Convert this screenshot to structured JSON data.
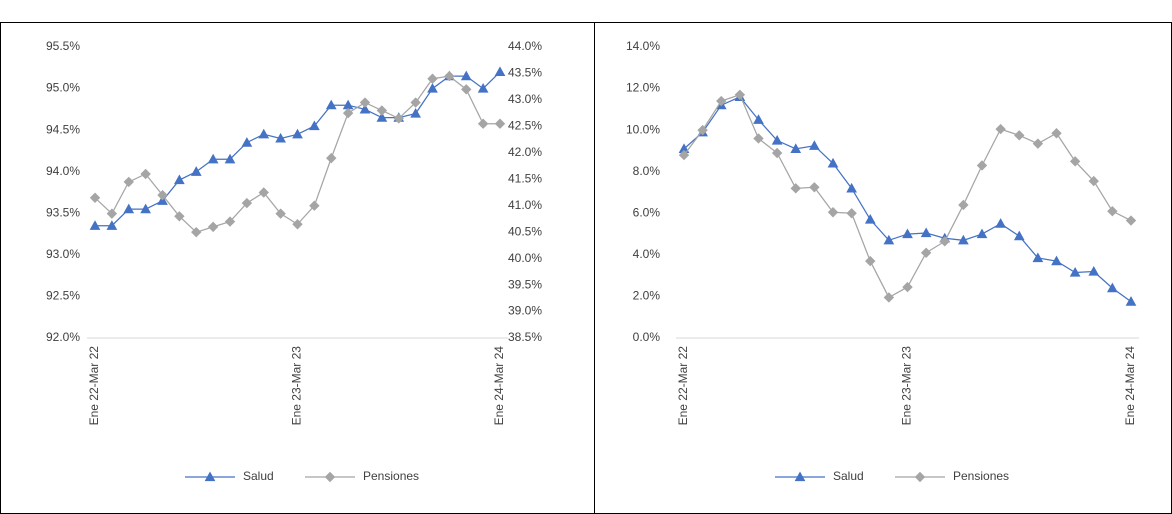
{
  "chart_data": [
    {
      "type": "line",
      "categories": [
        "Ene 22-Mar 22",
        null,
        null,
        null,
        null,
        null,
        null,
        null,
        null,
        null,
        null,
        null,
        "Ene 23-Mar 23",
        null,
        null,
        null,
        null,
        null,
        null,
        null,
        null,
        null,
        null,
        null,
        "Ene 24-Mar 24"
      ],
      "series": [
        {
          "name": "Salud",
          "color": "#4472c4",
          "marker": "triangle",
          "axis": "y",
          "values": [
            93.35,
            93.35,
            93.55,
            93.55,
            93.65,
            93.9,
            94.0,
            94.15,
            94.15,
            94.35,
            94.45,
            94.4,
            94.45,
            94.55,
            94.8,
            94.8,
            94.75,
            94.65,
            94.65,
            94.7,
            95.0,
            95.15,
            95.15,
            95.0,
            95.2
          ]
        },
        {
          "name": "Pensiones",
          "color": "#a5a5a5",
          "marker": "diamond",
          "axis": "y2",
          "values": [
            41.15,
            40.85,
            41.45,
            41.6,
            41.2,
            40.8,
            40.5,
            40.6,
            40.7,
            41.05,
            41.25,
            40.85,
            40.65,
            41.0,
            41.9,
            42.75,
            42.95,
            42.8,
            42.65,
            42.95,
            43.4,
            43.45,
            43.2,
            42.55,
            42.55
          ]
        }
      ],
      "ylim": [
        92,
        95.5
      ],
      "yticks": [
        {
          "value": 92,
          "label": "92.0%"
        },
        {
          "value": 92.5,
          "label": "92.5%"
        },
        {
          "value": 93,
          "label": "93.0%"
        },
        {
          "value": 93.5,
          "label": "93.5%"
        },
        {
          "value": 94,
          "label": "94.0%"
        },
        {
          "value": 94.5,
          "label": "94.5%"
        },
        {
          "value": 95,
          "label": "95.0%"
        },
        {
          "value": 95.5,
          "label": "95.5%"
        }
      ],
      "y2lim": [
        38.5,
        44
      ],
      "y2ticks": [
        {
          "value": 38.5,
          "label": "38.5%"
        },
        {
          "value": 39,
          "label": "39.0%"
        },
        {
          "value": 39.5,
          "label": "39.5%"
        },
        {
          "value": 40,
          "label": "40.0%"
        },
        {
          "value": 40.5,
          "label": "40.5%"
        },
        {
          "value": 41,
          "label": "41.0%"
        },
        {
          "value": 41.5,
          "label": "41.5%"
        },
        {
          "value": 42,
          "label": "42.0%"
        },
        {
          "value": 42.5,
          "label": "42.5%"
        },
        {
          "value": 43,
          "label": "43.0%"
        },
        {
          "value": 43.5,
          "label": "43.5%"
        },
        {
          "value": 44,
          "label": "44.0%"
        }
      ],
      "legend": "bottom"
    },
    {
      "type": "line",
      "categories": [
        "Ene 22-Mar 22",
        null,
        null,
        null,
        null,
        null,
        null,
        null,
        null,
        null,
        null,
        null,
        "Ene 23-Mar 23",
        null,
        null,
        null,
        null,
        null,
        null,
        null,
        null,
        null,
        null,
        null,
        "Ene 24-Mar 24"
      ],
      "series": [
        {
          "name": "Salud",
          "color": "#4472c4",
          "marker": "triangle",
          "axis": "y",
          "values": [
            9.1,
            9.9,
            11.2,
            11.6,
            10.5,
            9.5,
            9.1,
            9.25,
            8.4,
            7.2,
            5.7,
            4.7,
            5.0,
            5.05,
            4.8,
            4.7,
            5.0,
            5.5,
            4.9,
            3.85,
            3.7,
            3.15,
            3.2,
            2.4,
            1.75
          ]
        },
        {
          "name": "Pensiones",
          "color": "#a5a5a5",
          "marker": "diamond",
          "axis": "y",
          "values": [
            8.8,
            10.0,
            11.4,
            11.7,
            9.6,
            8.9,
            7.2,
            7.25,
            6.05,
            6.0,
            3.7,
            1.95,
            2.45,
            4.1,
            4.65,
            6.4,
            8.3,
            10.05,
            9.75,
            9.35,
            9.85,
            8.5,
            7.55,
            6.1,
            5.65
          ]
        }
      ],
      "ylim": [
        0,
        14
      ],
      "yticks": [
        {
          "value": 0,
          "label": "0.0%"
        },
        {
          "value": 2,
          "label": "2.0%"
        },
        {
          "value": 4,
          "label": "4.0%"
        },
        {
          "value": 6,
          "label": "6.0%"
        },
        {
          "value": 8,
          "label": "8.0%"
        },
        {
          "value": 10,
          "label": "10.0%"
        },
        {
          "value": 12,
          "label": "12.0%"
        },
        {
          "value": 14,
          "label": "14.0%"
        }
      ],
      "legend": "bottom"
    }
  ]
}
